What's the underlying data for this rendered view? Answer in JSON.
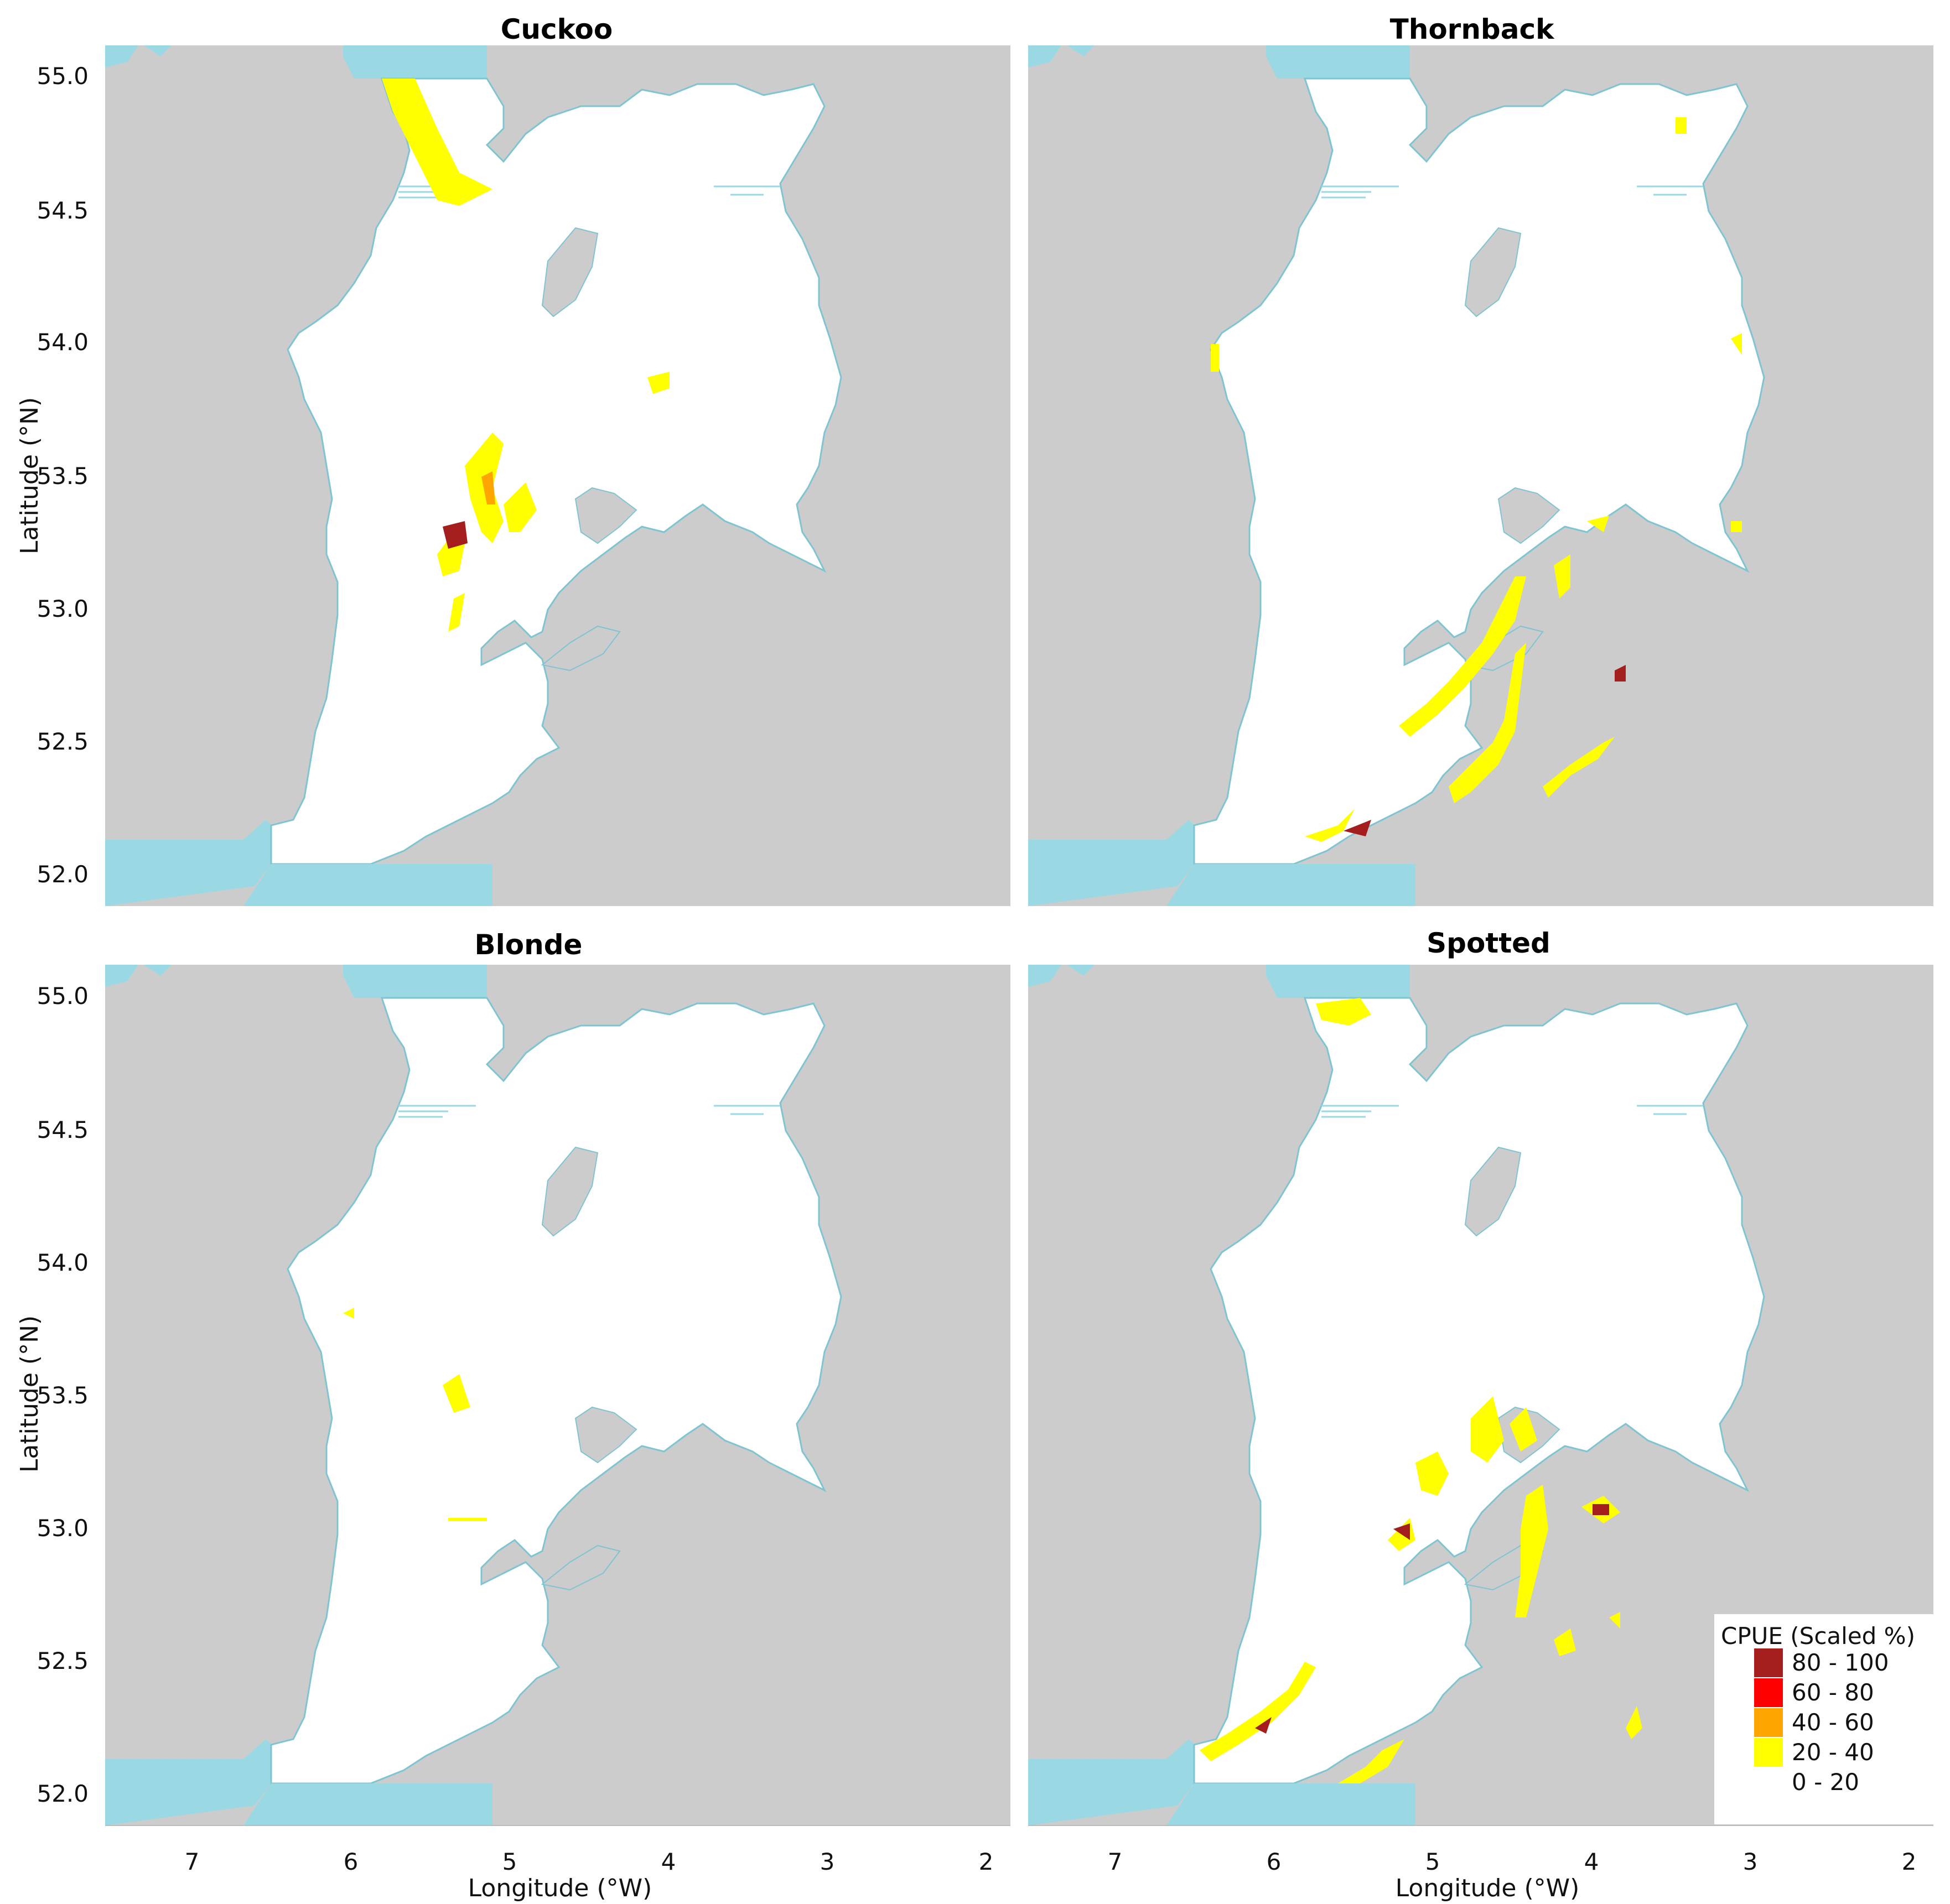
{
  "colors": {
    "sea": "#9ad9e3",
    "land": "#cccccc",
    "survey_area": "#ffffff",
    "coast_line": "#7fc4d1",
    "class_80_100": "#a51e1e",
    "class_60_80": "#ff0000",
    "class_40_60": "#ffa500",
    "class_20_40": "#ffff00",
    "class_0_20": "#ffffff"
  },
  "panels": [
    {
      "title": "Cuckoo"
    },
    {
      "title": "Thornback"
    },
    {
      "title": "Blonde"
    },
    {
      "title": "Spotted"
    }
  ],
  "axes": {
    "x_title": "Longitude (°W)",
    "y_title": "Latitude (°N)",
    "x_ticks": [
      "7",
      "6",
      "5",
      "4",
      "3",
      "2"
    ],
    "y_ticks": [
      "55.0",
      "54.5",
      "54.0",
      "53.5",
      "53.0",
      "52.5",
      "52.0"
    ],
    "x_range_degW": [
      7.55,
      1.85
    ],
    "y_range_degN": [
      51.88,
      55.12
    ]
  },
  "legend": {
    "title": "CPUE (Scaled %)",
    "placement": "bottom-right of Spotted panel",
    "items": [
      {
        "label": "80 - 100",
        "color": "#a51e1e"
      },
      {
        "label": "60 - 80",
        "color": "#ff0000"
      },
      {
        "label": "40 - 60",
        "color": "#ffa500"
      },
      {
        "label": "20 - 40",
        "color": "#ffff00"
      },
      {
        "label": "0 - 20",
        "color": "#ffffff"
      }
    ]
  }
}
